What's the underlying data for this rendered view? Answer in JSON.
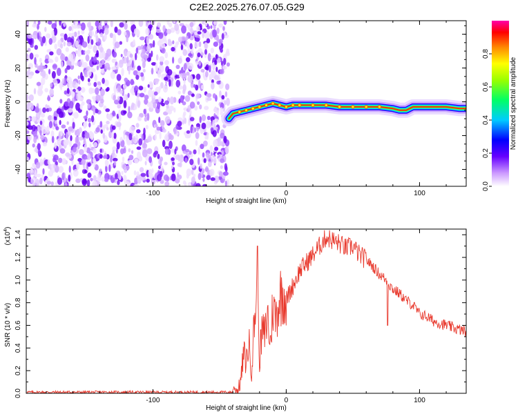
{
  "title": "C2E2.2025.276.07.05.G29",
  "chart_data": [
    {
      "type": "heatmap",
      "name": "spectrogram",
      "xlabel": "Height of straight line (km)",
      "ylabel": "Frequency (Hz)",
      "xlim": [
        -195,
        135
      ],
      "ylim": [
        -50,
        48
      ],
      "xticks": [
        -100,
        0,
        100
      ],
      "xtick_labels": [
        "-100",
        "0",
        "100"
      ],
      "yticks": [
        -40,
        -20,
        0,
        20,
        40
      ],
      "ytick_labels": [
        "-40",
        "-20",
        "0",
        "20",
        "40"
      ],
      "noise_region_x": [
        -195,
        -45
      ],
      "ridge": {
        "x": [
          -43,
          -40,
          -35,
          -30,
          -25,
          -20,
          -15,
          -10,
          -5,
          0,
          5,
          10,
          20,
          30,
          40,
          50,
          60,
          70,
          80,
          85,
          90,
          95,
          100,
          110,
          120,
          130,
          135
        ],
        "y": [
          -10,
          -7,
          -6,
          -5,
          -4,
          -3,
          -2,
          -1,
          -2,
          -3,
          -2,
          -2,
          -2,
          -2,
          -3,
          -3,
          -3,
          -3,
          -4,
          -5,
          -5,
          -3,
          -3,
          -3,
          -3,
          -4,
          -4
        ]
      },
      "colorbar": {
        "label": "Normalized spectral amplitude",
        "range": [
          0.0,
          1.0
        ],
        "ticks": [
          0.0,
          0.2,
          0.4,
          0.6,
          0.8
        ],
        "tick_labels": [
          "0.0",
          "0.2",
          "0.4",
          "0.6",
          "0.8"
        ]
      }
    },
    {
      "type": "line",
      "name": "snr",
      "xlabel": "Height of straight line (km)",
      "ylabel": "SNR (10 * v/v)",
      "scale_label": "(x10",
      "scale_exp": "4",
      "scale_close": ")",
      "xlim": [
        -195,
        135
      ],
      "ylim": [
        0,
        1.45
      ],
      "xticks": [
        -100,
        0,
        100
      ],
      "xtick_labels": [
        "-100",
        "0",
        "100"
      ],
      "yticks": [
        0.0,
        0.2,
        0.4,
        0.6,
        0.8,
        1.0,
        1.2,
        1.4
      ],
      "ytick_labels": [
        "0.0",
        "0.2",
        "0.4",
        "0.6",
        "0.8",
        "1.0",
        "1.2",
        "1.4"
      ],
      "color": "#e8382c",
      "series": [
        {
          "name": "SNR",
          "x": [
            -195,
            -150,
            -100,
            -60,
            -40,
            -36,
            -34,
            -32,
            -30,
            -28,
            -26,
            -24,
            -22,
            -20,
            -18,
            -16,
            -14,
            -12,
            -10,
            -8,
            -5,
            -2,
            0,
            5,
            10,
            15,
            20,
            25,
            30,
            35,
            40,
            45,
            50,
            55,
            60,
            65,
            70,
            75,
            80,
            85,
            90,
            95,
            100,
            105,
            110,
            115,
            120,
            125,
            130,
            135
          ],
          "values": [
            0.01,
            0.01,
            0.01,
            0.01,
            0.01,
            0.03,
            0.12,
            0.35,
            0.28,
            0.45,
            0.2,
            0.62,
            0.9,
            0.32,
            0.55,
            0.5,
            0.7,
            0.42,
            0.78,
            0.66,
            0.85,
            0.9,
            0.82,
            0.95,
            1.08,
            1.15,
            1.22,
            1.3,
            1.38,
            1.35,
            1.32,
            1.28,
            1.3,
            1.22,
            1.18,
            1.12,
            1.05,
            1.0,
            0.92,
            0.88,
            0.82,
            0.78,
            0.7,
            0.68,
            0.64,
            0.62,
            0.6,
            0.58,
            0.56,
            0.55
          ]
        }
      ]
    }
  ]
}
